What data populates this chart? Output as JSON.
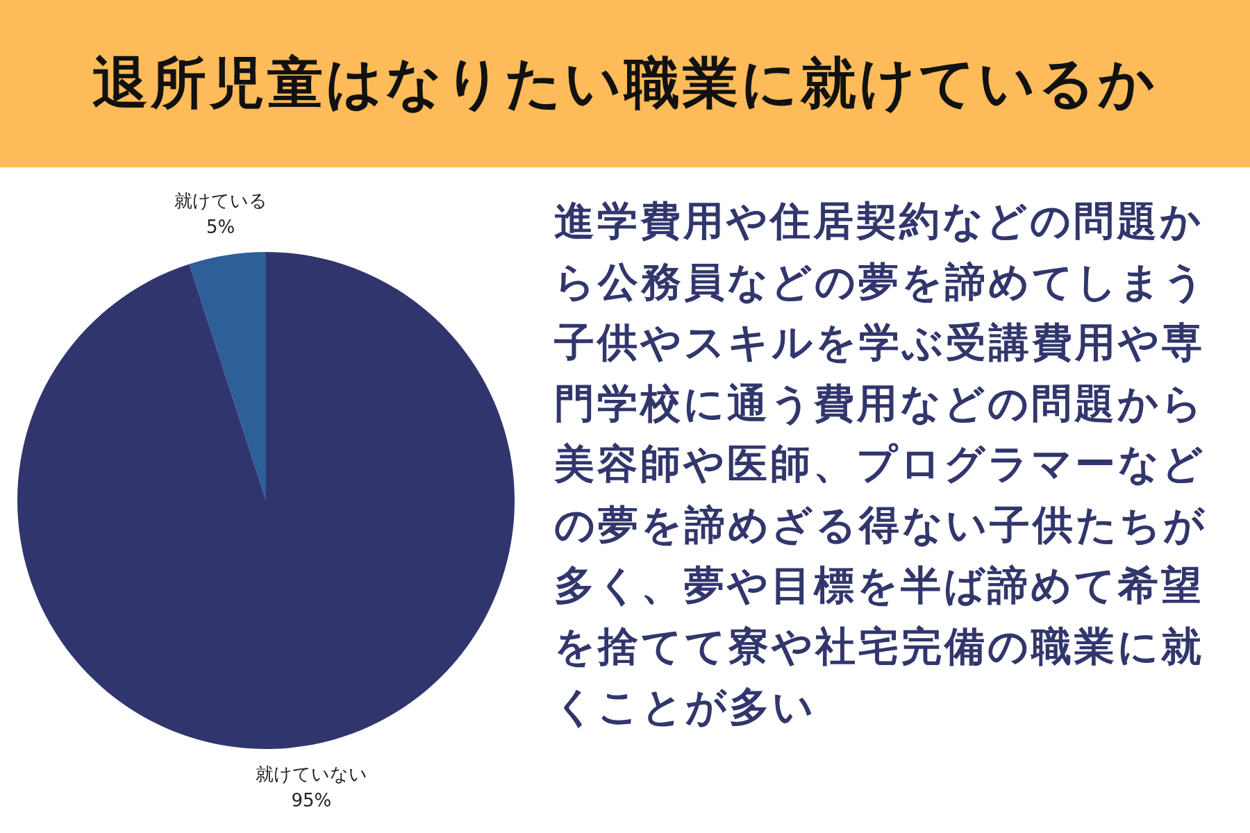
{
  "chart_data": {
    "type": "pie",
    "title": "退所児童はなりたい職業に就けているか",
    "categories": [
      "就けている",
      "就けていない"
    ],
    "values": [
      5,
      95
    ],
    "colors": [
      "#2e5f99",
      "#31356e"
    ],
    "value_labels": [
      "5%",
      "95%"
    ],
    "annotations": [
      "進学費用や住居契約などの問題から公務員などの夢を諦めてしまう子供やスキルを学ぶ受講費用や専門学校に通う費用などの問題から美容師や医師、プログラマーなどの夢を諦めざる得ない子供たちが多く、夢や目標を半ば諦めて希望を捨てて寮や社宅完備の職業に就くことが多い"
    ]
  }
}
